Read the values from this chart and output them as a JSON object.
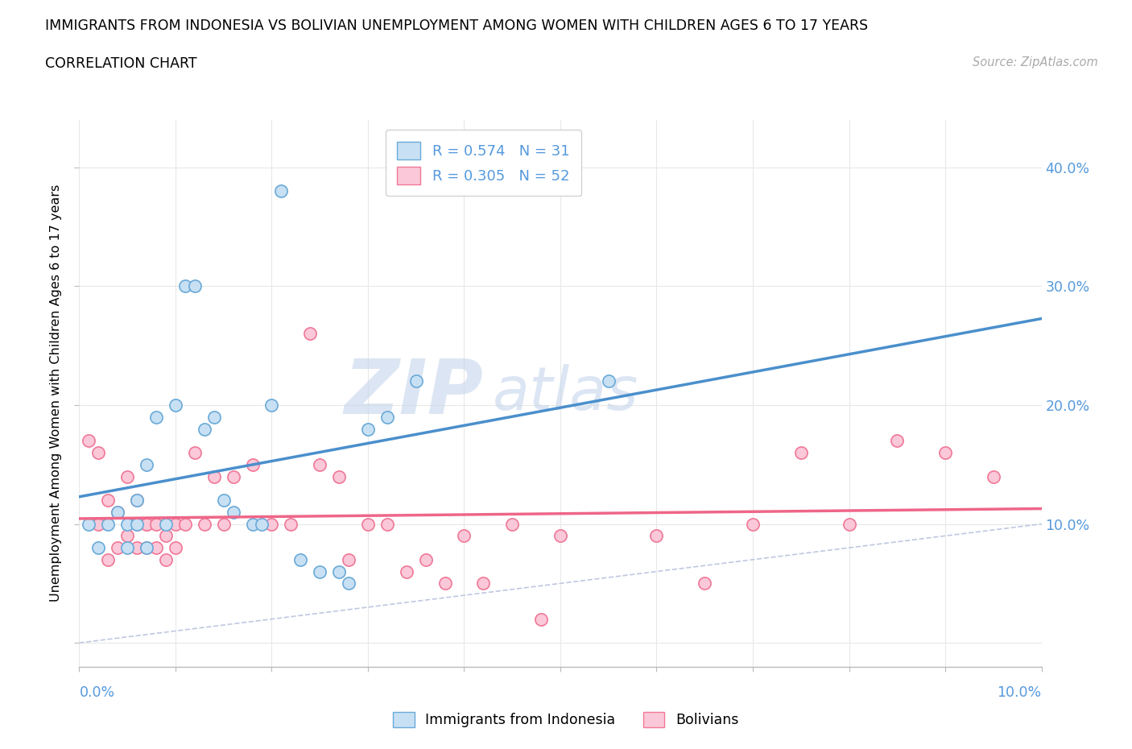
{
  "title": "IMMIGRANTS FROM INDONESIA VS BOLIVIAN UNEMPLOYMENT AMONG WOMEN WITH CHILDREN AGES 6 TO 17 YEARS",
  "subtitle": "CORRELATION CHART",
  "source": "Source: ZipAtlas.com",
  "ylabel": "Unemployment Among Women with Children Ages 6 to 17 years",
  "legend1_label": "R = 0.574   N = 31",
  "legend2_label": "R = 0.305   N = 52",
  "color_indonesia": "#C8E0F4",
  "color_bolivia": "#FAC8D8",
  "edge_indonesia": "#6AAAD8",
  "edge_bolivia": "#F07898",
  "line_indonesia": "#4A8FCC",
  "line_bolivia": "#EE6688",
  "diagonal_color": "#C0C8E0",
  "right_tick_color": "#5599DD",
  "right_ytick_vals": [
    0.1,
    0.2,
    0.3,
    0.4
  ],
  "right_ytick_labels": [
    "10.0%",
    "20.0%",
    "30.0%",
    "40.0%"
  ],
  "indonesia_x": [
    0.001,
    0.002,
    0.003,
    0.004,
    0.005,
    0.005,
    0.006,
    0.006,
    0.007,
    0.007,
    0.008,
    0.009,
    0.01,
    0.011,
    0.012,
    0.013,
    0.014,
    0.015,
    0.016,
    0.018,
    0.019,
    0.02,
    0.021,
    0.023,
    0.025,
    0.027,
    0.028,
    0.03,
    0.032,
    0.035,
    0.055
  ],
  "indonesia_y": [
    0.1,
    0.08,
    0.1,
    0.11,
    0.1,
    0.08,
    0.1,
    0.12,
    0.15,
    0.08,
    0.19,
    0.1,
    0.2,
    0.3,
    0.3,
    0.18,
    0.19,
    0.12,
    0.11,
    0.1,
    0.1,
    0.2,
    0.38,
    0.07,
    0.06,
    0.06,
    0.05,
    0.18,
    0.19,
    0.22,
    0.22
  ],
  "bolivia_x": [
    0.001,
    0.002,
    0.002,
    0.003,
    0.003,
    0.004,
    0.004,
    0.005,
    0.005,
    0.006,
    0.006,
    0.006,
    0.007,
    0.007,
    0.007,
    0.008,
    0.008,
    0.009,
    0.009,
    0.01,
    0.01,
    0.011,
    0.012,
    0.013,
    0.014,
    0.015,
    0.016,
    0.018,
    0.02,
    0.022,
    0.024,
    0.025,
    0.027,
    0.028,
    0.03,
    0.032,
    0.034,
    0.036,
    0.038,
    0.04,
    0.042,
    0.045,
    0.048,
    0.05,
    0.06,
    0.065,
    0.07,
    0.075,
    0.08,
    0.085,
    0.09,
    0.095
  ],
  "bolivia_y": [
    0.17,
    0.16,
    0.1,
    0.12,
    0.07,
    0.11,
    0.08,
    0.14,
    0.09,
    0.12,
    0.1,
    0.08,
    0.1,
    0.08,
    0.1,
    0.08,
    0.1,
    0.09,
    0.07,
    0.1,
    0.08,
    0.1,
    0.16,
    0.1,
    0.14,
    0.1,
    0.14,
    0.15,
    0.1,
    0.1,
    0.26,
    0.15,
    0.14,
    0.07,
    0.1,
    0.1,
    0.06,
    0.07,
    0.05,
    0.09,
    0.05,
    0.1,
    0.02,
    0.09,
    0.09,
    0.05,
    0.1,
    0.16,
    0.1,
    0.17,
    0.16,
    0.14
  ],
  "xlim": [
    0.0,
    0.1
  ],
  "ylim": [
    -0.02,
    0.44
  ],
  "figsize": [
    14.06,
    9.3
  ],
  "dpi": 100
}
